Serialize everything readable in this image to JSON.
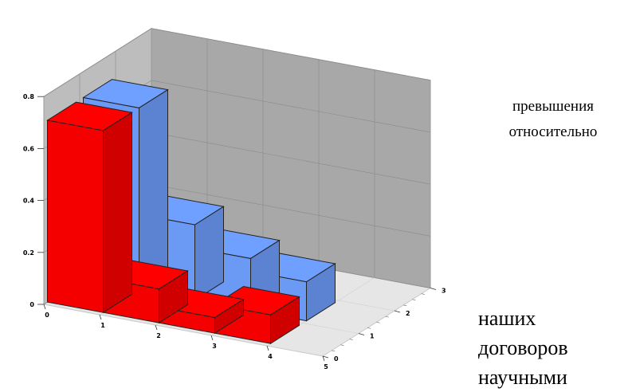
{
  "chart_data": {
    "type": "bar3d",
    "x_ticks": [
      "0",
      "1",
      "2",
      "3",
      "4",
      "5"
    ],
    "y_ticks": [
      "0",
      "1",
      "2",
      "3"
    ],
    "z_ticks": [
      "0",
      "0.2",
      "0.4",
      "0.6",
      "0.8"
    ],
    "zlim": [
      0,
      0.8
    ],
    "grid": true,
    "colors": {
      "front": "#ff0000",
      "back": "#6fa0ff",
      "walls": "#bdbdbd",
      "floor": "#e6e6e6"
    },
    "series": [
      {
        "color": "#ff0000",
        "row": 0,
        "values": [
          0.7,
          0.13,
          0.06,
          0.11
        ]
      },
      {
        "color": "#6fa0ff",
        "row": 1,
        "values": [
          0.7,
          0.29,
          0.2,
          0.15
        ]
      }
    ]
  },
  "side_text": {
    "top_line1": "превышения",
    "top_line2": "относительно",
    "bottom_line1": "наших",
    "bottom_line2": "договоров",
    "bottom_line3": "научными"
  }
}
